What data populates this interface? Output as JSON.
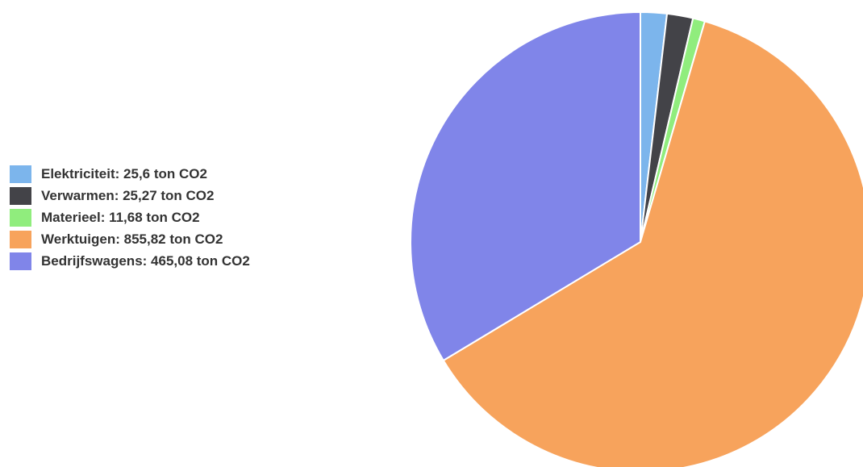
{
  "chart_data": {
    "type": "pie",
    "unit": "ton CO2",
    "slices": [
      {
        "name": "Elektriciteit",
        "value": 25.6,
        "color": "#7cb5ec"
      },
      {
        "name": "Verwarmen",
        "value": 25.27,
        "color": "#434348"
      },
      {
        "name": "Materieel",
        "value": 11.68,
        "color": "#90ed7d"
      },
      {
        "name": "Werktuigen",
        "value": 855.82,
        "color": "#f7a35c"
      },
      {
        "name": "Bedrijfswagens",
        "value": 465.08,
        "color": "#8085e9"
      }
    ],
    "legend_position": "left"
  },
  "legend": {
    "items": [
      {
        "label": "Elektriciteit: 25,6 ton CO2",
        "color": "#7cb5ec"
      },
      {
        "label": "Verwarmen: 25,27 ton CO2",
        "color": "#434348"
      },
      {
        "label": "Materieel: 11,68 ton CO2",
        "color": "#90ed7d"
      },
      {
        "label": "Werktuigen: 855,82 ton CO2",
        "color": "#f7a35c"
      },
      {
        "label": "Bedrijfswagens: 465,08 ton CO2",
        "color": "#8085e9"
      }
    ]
  }
}
